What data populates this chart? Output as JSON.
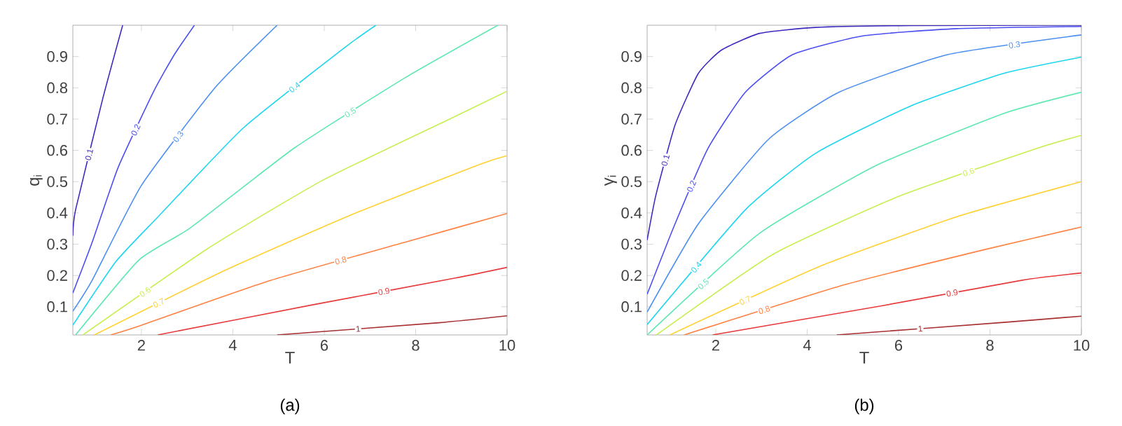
{
  "chart_data": [
    {
      "type": "line",
      "xlabel": "T",
      "ylabel": "q$_{i}$",
      "annotations": [
        "(a)"
      ],
      "xlim": [
        0.5,
        10
      ],
      "ylim": [
        0.01,
        1
      ],
      "xticks": [
        2,
        4,
        6,
        8,
        10
      ],
      "yticks": [
        0.1,
        0.2,
        0.3,
        0.4,
        0.5,
        0.6,
        0.7,
        0.8,
        0.9
      ],
      "series": [
        {
          "name": "0.1",
          "color": "#3d2bbf",
          "x": [
            0.5,
            0.56,
            1.15,
            1.59
          ],
          "values": [
            0.327,
            0.41,
            0.763,
            1.0
          ]
        },
        {
          "name": "0.2",
          "color": "#4b4ef0",
          "x": [
            0.5,
            0.92,
            1.49,
            2.26,
            2.72,
            3.16
          ],
          "values": [
            0.144,
            0.305,
            0.545,
            0.786,
            0.906,
            1.0
          ]
        },
        {
          "name": "0.3",
          "color": "#4a8ff0",
          "x": [
            0.5,
            0.92,
            2.0,
            3.61,
            4.97
          ],
          "values": [
            0.086,
            0.184,
            0.488,
            0.8,
            1.0
          ]
        },
        {
          "name": "0.4",
          "color": "#1ad5f0",
          "x": [
            0.5,
            1.44,
            2.36,
            4.24,
            6.46,
            7.13
          ],
          "values": [
            0.041,
            0.244,
            0.387,
            0.673,
            0.93,
            1.0
          ]
        },
        {
          "name": "0.5",
          "color": "#5de8b0",
          "x": [
            0.56,
            1.95,
            3.08,
            5.35,
            7.79,
            9.8
          ],
          "values": [
            0.01,
            0.25,
            0.353,
            0.608,
            0.834,
            1.0
          ]
        },
        {
          "name": "0.6",
          "color": "#c8ef50",
          "x": [
            0.72,
            3.44,
            5.95,
            8.67,
            10
          ],
          "values": [
            0.01,
            0.285,
            0.503,
            0.695,
            0.789
          ]
        },
        {
          "name": "0.7",
          "color": "#ffd030",
          "x": [
            0.97,
            3.79,
            6.56,
            9.44,
            10
          ],
          "values": [
            0.01,
            0.214,
            0.392,
            0.557,
            0.583
          ]
        },
        {
          "name": "0.8",
          "color": "#ff8040",
          "x": [
            1.33,
            2.0,
            4.82,
            7.9,
            10
          ],
          "values": [
            0.01,
            0.041,
            0.184,
            0.312,
            0.398
          ]
        },
        {
          "name": "0.9",
          "color": "#e83a3a",
          "x": [
            2.36,
            5.74,
            8.87,
            10
          ],
          "values": [
            0.01,
            0.106,
            0.192,
            0.226
          ]
        },
        {
          "name": "1",
          "color": "#a83030",
          "x": [
            4.97,
            8.51,
            10
          ],
          "values": [
            0.01,
            0.049,
            0.071
          ]
        }
      ]
    },
    {
      "type": "line",
      "xlabel": "T",
      "ylabel": "γ$_{i}$",
      "annotations": [
        "(b)"
      ],
      "xlim": [
        0.5,
        10
      ],
      "ylim": [
        0.01,
        1
      ],
      "xticks": [
        2,
        4,
        6,
        8,
        10
      ],
      "yticks": [
        0.1,
        0.2,
        0.3,
        0.4,
        0.5,
        0.6,
        0.7,
        0.8,
        0.9
      ],
      "series": [
        {
          "name": "0.1",
          "color": "#3d2bbf",
          "x": [
            0.5,
            0.69,
            1.11,
            1.62,
            2.13,
            2.96,
            4.19,
            6.25,
            10
          ],
          "values": [
            0.313,
            0.456,
            0.681,
            0.846,
            0.921,
            0.974,
            0.993,
            0.999,
            1.0
          ]
        },
        {
          "name": "0.2",
          "color": "#4b4ef0",
          "x": [
            0.5,
            1.11,
            1.83,
            2.65,
            3.68,
            5.22,
            7.28,
            10
          ],
          "values": [
            0.14,
            0.365,
            0.606,
            0.786,
            0.906,
            0.966,
            0.989,
            0.996
          ]
        },
        {
          "name": "0.3",
          "color": "#4a8ff0",
          "x": [
            0.5,
            1.62,
            3.16,
            4.7,
            7.07,
            10
          ],
          "values": [
            0.083,
            0.365,
            0.636,
            0.786,
            0.906,
            0.969
          ]
        },
        {
          "name": "0.4",
          "color": "#1ad5f0",
          "x": [
            0.5,
            2.65,
            4.19,
            6.25,
            8.3,
            10
          ],
          "values": [
            0.043,
            0.41,
            0.591,
            0.741,
            0.846,
            0.898
          ]
        },
        {
          "name": "0.5",
          "color": "#5de8b0",
          "x": [
            0.5,
            2.96,
            5.53,
            8.3,
            10
          ],
          "values": [
            0.01,
            0.335,
            0.553,
            0.718,
            0.786
          ]
        },
        {
          "name": "0.6",
          "color": "#c8ef50",
          "x": [
            0.7,
            3.26,
            6.04,
            9.02,
            10
          ],
          "values": [
            0.01,
            0.268,
            0.455,
            0.606,
            0.648
          ]
        },
        {
          "name": "0.7",
          "color": "#ffd030",
          "x": [
            1.0,
            4.29,
            7.28,
            10
          ],
          "values": [
            0.01,
            0.23,
            0.388,
            0.5
          ]
        },
        {
          "name": "0.8",
          "color": "#ff8040",
          "x": [
            1.31,
            4.81,
            7.89,
            10
          ],
          "values": [
            0.01,
            0.17,
            0.283,
            0.355
          ]
        },
        {
          "name": "0.9",
          "color": "#e83a3a",
          "x": [
            1.93,
            5.63,
            8.71,
            10
          ],
          "values": [
            0.01,
            0.103,
            0.185,
            0.208
          ]
        },
        {
          "name": "1",
          "color": "#a83030",
          "x": [
            4.65,
            8.3,
            10
          ],
          "values": [
            0.01,
            0.05,
            0.07
          ]
        }
      ]
    }
  ]
}
